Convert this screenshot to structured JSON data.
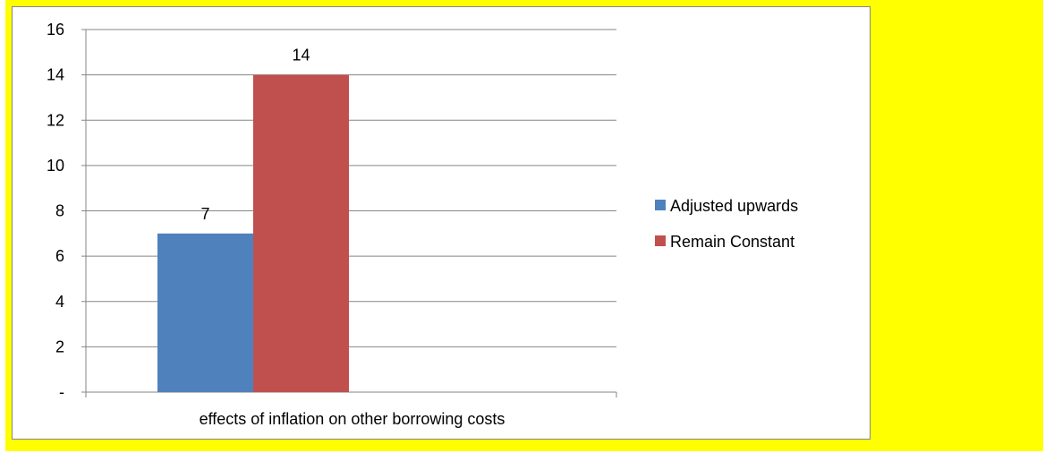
{
  "colors": {
    "background_panel": "#ffff00",
    "series_1": "#4f81bd",
    "series_2": "#c0504d",
    "gridline": "#868686"
  },
  "chart_data": {
    "type": "bar",
    "categories": [
      "effects of inflation on other borrowing costs"
    ],
    "series": [
      {
        "name": "Adjusted upwards",
        "values": [
          7
        ]
      },
      {
        "name": "Remain Constant",
        "values": [
          14
        ]
      }
    ],
    "data_labels": [
      "7",
      "14"
    ],
    "ylim": [
      0,
      16
    ],
    "yticks": [
      0,
      2,
      4,
      6,
      8,
      10,
      12,
      14,
      16
    ],
    "ytick_labels": [
      "-",
      "2",
      "4",
      "6",
      "8",
      "10",
      "12",
      "14",
      "16"
    ],
    "grid": true,
    "legend_position": "right"
  }
}
